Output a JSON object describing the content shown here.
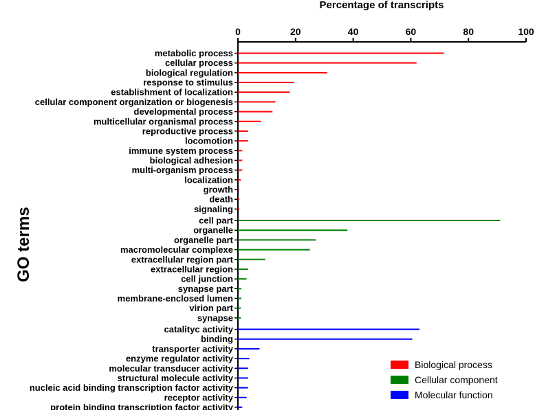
{
  "chart_data": {
    "type": "bar",
    "orientation": "horizontal",
    "title": "",
    "xlabel": "Percentage of transcripts",
    "ylabel": "GO terms",
    "xlim": [
      0,
      100
    ],
    "xticks": [
      0,
      20,
      40,
      60,
      80,
      100
    ],
    "grid": false,
    "legend_position": "bottom-right",
    "series": [
      {
        "name": "Biological process",
        "color": "#ff0000",
        "categories": [
          "metabolic process",
          "cellular process",
          "biological regulation",
          "response to stimulus",
          "establishment of localization",
          "cellular component organization or biogenesis",
          "developmental process",
          "multicellular organismal process",
          "reproductive process",
          "locomotion",
          "immune system process",
          "biological adhesion",
          "multi-organism process",
          "localization",
          "growth",
          "death",
          "signaling"
        ],
        "values": [
          71.5,
          62,
          31,
          19.5,
          18,
          13,
          12,
          8,
          3.5,
          3.5,
          1.5,
          1.5,
          1.5,
          1,
          0.5,
          0.5,
          0.5
        ]
      },
      {
        "name": "Cellular component",
        "color": "#008000",
        "categories": [
          "cell part",
          "organelle",
          "organelle part",
          "macromolecular complexe",
          "extracellular region part",
          "extracellular region",
          "cell junction",
          "synapse part",
          "membrane-enclosed lumen",
          "virion part",
          "synapse"
        ],
        "values": [
          91,
          38,
          27,
          25,
          9.5,
          3.5,
          3,
          1.2,
          1.2,
          1,
          1
        ]
      },
      {
        "name": "Molecular function",
        "color": "#0000ff",
        "categories": [
          "catalityc activity",
          "binding",
          "transporter activity",
          "enzyme regulator activity",
          "molecular transducer activity",
          "structural molecule activity",
          "nucleic acid binding transcription factor activity",
          "receptor activity",
          "protein binding transcription factor activity"
        ],
        "values": [
          63,
          60.5,
          7.5,
          4,
          3.5,
          3.5,
          3.5,
          3,
          1.5
        ]
      }
    ]
  }
}
